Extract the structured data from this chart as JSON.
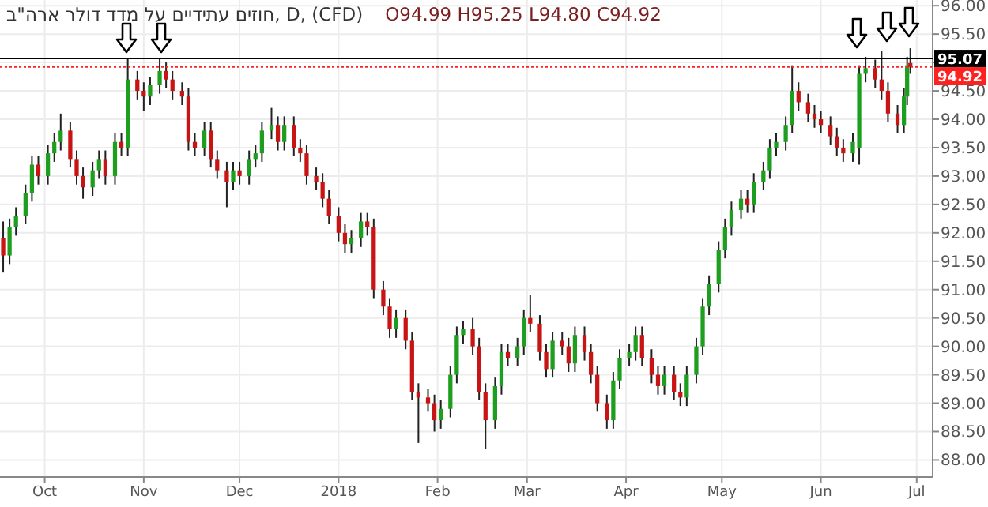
{
  "chart_data": {
    "type": "candlestick",
    "title": "חוזים עתידיים על מדד דולר ארה\"ב, D, (CFD)",
    "annotations": [
      "O94.99 H95.25 L94.80 C94.92"
    ],
    "colors": [
      "#c81414",
      "#1e9e1e",
      "#1e9e1e",
      "#1e9e1e",
      "#1e9e1e",
      "#c81414",
      "#1e9e1e",
      "#1e9e1e",
      "#1e9e1e",
      "#c81414",
      "#c81414",
      "#c81414",
      "#1e9e1e",
      "#1e9e1e",
      "#c81414",
      "#1e9e1e",
      "#c81414",
      "#1e9e1e",
      "#c81414",
      "#c81414",
      "#1e9e1e",
      "#1e9e1e",
      "#c81414",
      "#c81414",
      "#c81414",
      "#c81414",
      "#c81414",
      "#1e9e1e",
      "#c81414",
      "#c81414",
      "#c81414",
      "#1e9e1e",
      "#c81414",
      "#1e9e1e",
      "#1e9e1e",
      "#1e9e1e",
      "#1e9e1e",
      "#c81414",
      "#1e9e1e",
      "#c81414",
      "#c81414",
      "#c81414",
      "#c81414",
      "#c81414",
      "#c81414",
      "#c81414",
      "#c81414",
      "#1e9e1e",
      "#1e9e1e",
      "#c81414",
      "#c81414",
      "#c81414",
      "#c81414",
      "#1e9e1e",
      "#c81414",
      "#c81414",
      "#c81414",
      "#c81414",
      "#c81414",
      "#1e9e1e",
      "#1e9e1e",
      "#1e9e1e",
      "#1e9e1e",
      "#c81414",
      "#c81414",
      "#c81414",
      "#1e9e1e",
      "#1e9e1e",
      "#c81414",
      "#1e9e1e",
      "#1e9e1e",
      "#c81414",
      "#c81414",
      "#c81414",
      "#1e9e1e",
      "#c81414",
      "#c81414",
      "#1e9e1e",
      "#c81414",
      "#c81414",
      "#c81414",
      "#c81414",
      "#1e9e1e",
      "#1e9e1e",
      "#1e9e1e",
      "#1e9e1e",
      "#c81414",
      "#c81414",
      "#c81414",
      "#1e9e1e",
      "#c81414",
      "#c81414",
      "#1e9e1e",
      "#1e9e1e",
      "#1e9e1e",
      "#1e9e1e",
      "#1e9e1e",
      "#1e9e1e",
      "#1e9e1e",
      "#1e9e1e",
      "#c81414",
      "#1e9e1e",
      "#1e9e1e",
      "#1e9e1e",
      "#1e9e1e",
      "#1e9e1e",
      "#1e9e1e",
      "#c81414",
      "#c81414",
      "#c81414",
      "#c81414",
      "#c81414",
      "#c81414",
      "#c81414",
      "#1e9e1e",
      "#1e9e1e",
      "#1e9e1e",
      "#c81414",
      "#c81414",
      "#c81414",
      "#c81414",
      "#1e9e1e",
      "#1e9e1e",
      "#c81414"
    ],
    "grid": true,
    "xlim": [
      "2017-09-17",
      "2018-07-06"
    ],
    "xticks": [
      {
        "value": "2017-10-01",
        "label": "Oct"
      },
      {
        "value": "2017-11-01",
        "label": "Nov"
      },
      {
        "value": "2017-12-01",
        "label": "Dec"
      },
      {
        "value": "2018-01-01",
        "label": "2018"
      },
      {
        "value": "2018-02-01",
        "label": "Feb"
      },
      {
        "value": "2018-03-01",
        "label": "Mar"
      },
      {
        "value": "2018-04-01",
        "label": "Apr"
      },
      {
        "value": "2018-05-01",
        "label": "May"
      },
      {
        "value": "2018-06-01",
        "label": "Jun"
      },
      {
        "value": "2018-07-01",
        "label": "Jul"
      }
    ],
    "ylim": [
      87.7,
      96.1
    ],
    "yticks": [
      {
        "value": 88,
        "label": "88.00"
      },
      {
        "value": 88.5,
        "label": "88.50"
      },
      {
        "value": 89,
        "label": "89.00"
      },
      {
        "value": 89.5,
        "label": "89.50"
      },
      {
        "value": 90,
        "label": "90.00"
      },
      {
        "value": 90.5,
        "label": "90.50"
      },
      {
        "value": 91,
        "label": "91.00"
      },
      {
        "value": 91.5,
        "label": "91.50"
      },
      {
        "value": 92,
        "label": "92.00"
      },
      {
        "value": 92.5,
        "label": "92.50"
      },
      {
        "value": 93,
        "label": "93.00"
      },
      {
        "value": 93.5,
        "label": "93.50"
      },
      {
        "value": 94,
        "label": "94.00"
      },
      {
        "value": 94.5,
        "label": "94.50"
      },
      {
        "value": 95,
        "label": null
      },
      {
        "value": 95.5,
        "label": "95.50"
      },
      {
        "value": 96,
        "label": "96.00"
      }
    ],
    "ref_lines": [
      {
        "axis": "y",
        "value": 95.07,
        "label": "95.07",
        "color": "#000000",
        "line_style": "solid"
      },
      {
        "axis": "y",
        "value": 94.92,
        "label": "94.92",
        "color": "#ff2020",
        "line_style": "dotted"
      }
    ],
    "x": [
      "2017-09-18",
      "2017-09-20",
      "2017-09-22",
      "2017-09-25",
      "2017-09-27",
      "2017-09-29",
      "2017-10-02",
      "2017-10-04",
      "2017-10-06",
      "2017-10-09",
      "2017-10-11",
      "2017-10-13",
      "2017-10-16",
      "2017-10-18",
      "2017-10-20",
      "2017-10-23",
      "2017-10-25",
      "2017-10-27",
      "2017-10-30",
      "2017-11-01",
      "2017-11-03",
      "2017-11-06",
      "2017-11-08",
      "2017-11-10",
      "2017-11-13",
      "2017-11-15",
      "2017-11-17",
      "2017-11-20",
      "2017-11-22",
      "2017-11-24",
      "2017-11-27",
      "2017-11-29",
      "2017-12-01",
      "2017-12-04",
      "2017-12-06",
      "2017-12-08",
      "2017-12-11",
      "2017-12-13",
      "2017-12-15",
      "2017-12-18",
      "2017-12-20",
      "2017-12-22",
      "2017-12-25",
      "2017-12-27",
      "2017-12-29",
      "2018-01-01",
      "2018-01-03",
      "2018-01-05",
      "2018-01-08",
      "2018-01-10",
      "2018-01-12",
      "2018-01-15",
      "2018-01-17",
      "2018-01-19",
      "2018-01-22",
      "2018-01-24",
      "2018-01-26",
      "2018-01-29",
      "2018-01-31",
      "2018-02-02",
      "2018-02-05",
      "2018-02-07",
      "2018-02-09",
      "2018-02-12",
      "2018-02-14",
      "2018-02-16",
      "2018-02-19",
      "2018-02-21",
      "2018-02-23",
      "2018-02-26",
      "2018-02-28",
      "2018-03-02",
      "2018-03-05",
      "2018-03-07",
      "2018-03-09",
      "2018-03-12",
      "2018-03-14",
      "2018-03-16",
      "2018-03-19",
      "2018-03-21",
      "2018-03-23",
      "2018-03-26",
      "2018-03-28",
      "2018-03-30",
      "2018-04-02",
      "2018-04-04",
      "2018-04-06",
      "2018-04-09",
      "2018-04-11",
      "2018-04-13",
      "2018-04-16",
      "2018-04-18",
      "2018-04-20",
      "2018-04-23",
      "2018-04-25",
      "2018-04-27",
      "2018-04-30",
      "2018-05-02",
      "2018-05-04",
      "2018-05-07",
      "2018-05-09",
      "2018-05-11",
      "2018-05-14",
      "2018-05-16",
      "2018-05-18",
      "2018-05-21",
      "2018-05-23",
      "2018-05-25",
      "2018-05-28",
      "2018-05-30",
      "2018-06-01",
      "2018-06-04",
      "2018-06-06",
      "2018-06-08",
      "2018-06-11",
      "2018-06-13",
      "2018-06-15",
      "2018-06-18",
      "2018-06-20",
      "2018-06-22",
      "2018-06-25",
      "2018-06-27",
      "2018-06-28",
      "2018-06-29"
    ],
    "ohlc": [
      [
        91.9,
        92.2,
        91.3,
        91.6
      ],
      [
        91.6,
        92.25,
        91.45,
        92.1
      ],
      [
        92.1,
        92.45,
        91.95,
        92.3
      ],
      [
        92.3,
        92.85,
        92.15,
        92.7
      ],
      [
        92.7,
        93.35,
        92.55,
        93.2
      ],
      [
        93.2,
        93.35,
        92.85,
        93.0
      ],
      [
        93.0,
        93.55,
        92.85,
        93.4
      ],
      [
        93.4,
        93.75,
        93.25,
        93.6
      ],
      [
        93.6,
        94.1,
        93.45,
        93.8
      ],
      [
        93.8,
        93.95,
        93.15,
        93.3
      ],
      [
        93.3,
        93.45,
        92.85,
        93.0
      ],
      [
        93.0,
        93.15,
        92.6,
        92.8
      ],
      [
        92.8,
        93.25,
        92.65,
        93.1
      ],
      [
        93.1,
        93.45,
        92.95,
        93.3
      ],
      [
        93.3,
        93.45,
        92.85,
        93.0
      ],
      [
        93.0,
        93.75,
        92.85,
        93.6
      ],
      [
        93.6,
        93.75,
        93.35,
        93.5
      ],
      [
        93.5,
        95.07,
        93.35,
        94.7
      ],
      [
        94.7,
        94.85,
        94.35,
        94.5
      ],
      [
        94.5,
        94.65,
        94.15,
        94.4
      ],
      [
        94.4,
        94.75,
        94.25,
        94.6
      ],
      [
        94.6,
        95.07,
        94.45,
        94.85
      ],
      [
        94.85,
        95.0,
        94.55,
        94.7
      ],
      [
        94.7,
        94.85,
        94.35,
        94.5
      ],
      [
        94.5,
        94.65,
        94.25,
        94.4
      ],
      [
        94.4,
        94.55,
        93.45,
        93.6
      ],
      [
        93.6,
        93.75,
        93.35,
        93.5
      ],
      [
        93.5,
        93.95,
        93.35,
        93.8
      ],
      [
        93.8,
        93.95,
        93.15,
        93.3
      ],
      [
        93.3,
        93.45,
        92.95,
        93.1
      ],
      [
        93.1,
        93.25,
        92.45,
        92.9
      ],
      [
        92.9,
        93.25,
        92.75,
        93.1
      ],
      [
        93.1,
        93.25,
        92.85,
        93.0
      ],
      [
        93.0,
        93.45,
        92.85,
        93.3
      ],
      [
        93.3,
        93.55,
        93.15,
        93.4
      ],
      [
        93.4,
        93.95,
        93.25,
        93.8
      ],
      [
        93.8,
        94.2,
        93.65,
        93.9
      ],
      [
        93.9,
        94.05,
        93.45,
        93.6
      ],
      [
        93.6,
        94.05,
        93.45,
        93.9
      ],
      [
        93.9,
        94.05,
        93.35,
        93.5
      ],
      [
        93.5,
        93.65,
        93.25,
        93.4
      ],
      [
        93.4,
        93.55,
        92.85,
        93.0
      ],
      [
        93.0,
        93.15,
        92.75,
        92.9
      ],
      [
        92.9,
        93.05,
        92.45,
        92.6
      ],
      [
        92.6,
        92.75,
        92.15,
        92.3
      ],
      [
        92.3,
        92.45,
        91.85,
        92.0
      ],
      [
        92.0,
        92.15,
        91.65,
        91.8
      ],
      [
        91.8,
        92.05,
        91.65,
        91.9
      ],
      [
        91.9,
        92.35,
        91.75,
        92.2
      ],
      [
        92.2,
        92.35,
        91.95,
        92.1
      ],
      [
        92.1,
        92.25,
        90.85,
        91.0
      ],
      [
        91.0,
        91.15,
        90.55,
        90.7
      ],
      [
        90.7,
        90.85,
        90.15,
        90.3
      ],
      [
        90.3,
        90.65,
        90.15,
        90.5
      ],
      [
        90.5,
        90.65,
        89.95,
        90.1
      ],
      [
        90.1,
        90.25,
        89.05,
        89.2
      ],
      [
        89.2,
        89.35,
        88.3,
        89.1
      ],
      [
        89.1,
        89.25,
        88.85,
        89.0
      ],
      [
        89.0,
        89.15,
        88.5,
        88.7
      ],
      [
        88.7,
        89.05,
        88.55,
        88.9
      ],
      [
        88.9,
        89.65,
        88.75,
        89.5
      ],
      [
        89.5,
        90.35,
        89.35,
        90.2
      ],
      [
        90.2,
        90.45,
        90.05,
        90.3
      ],
      [
        90.3,
        90.5,
        89.85,
        90.0
      ],
      [
        90.0,
        90.15,
        89.05,
        89.2
      ],
      [
        89.2,
        89.35,
        88.2,
        88.7
      ],
      [
        88.7,
        89.45,
        88.55,
        89.3
      ],
      [
        89.3,
        90.05,
        89.15,
        89.9
      ],
      [
        89.9,
        90.05,
        89.65,
        89.8
      ],
      [
        89.8,
        90.15,
        89.65,
        90.0
      ],
      [
        90.0,
        90.65,
        89.85,
        90.5
      ],
      [
        90.5,
        90.9,
        90.25,
        90.4
      ],
      [
        90.4,
        90.55,
        89.75,
        89.9
      ],
      [
        89.9,
        90.05,
        89.45,
        89.6
      ],
      [
        89.6,
        90.25,
        89.45,
        90.1
      ],
      [
        90.1,
        90.25,
        89.85,
        90.0
      ],
      [
        90.0,
        90.15,
        89.55,
        89.7
      ],
      [
        89.7,
        90.35,
        89.55,
        90.2
      ],
      [
        90.2,
        90.35,
        89.75,
        89.9
      ],
      [
        89.9,
        90.05,
        89.35,
        89.5
      ],
      [
        89.5,
        89.65,
        88.85,
        89.0
      ],
      [
        89.0,
        89.15,
        88.55,
        88.7
      ],
      [
        88.7,
        89.55,
        88.55,
        89.4
      ],
      [
        89.4,
        89.95,
        89.25,
        89.8
      ],
      [
        89.8,
        90.05,
        89.65,
        89.9
      ],
      [
        89.9,
        90.35,
        89.75,
        90.2
      ],
      [
        90.2,
        90.35,
        89.65,
        89.8
      ],
      [
        89.8,
        89.95,
        89.35,
        89.5
      ],
      [
        89.5,
        89.65,
        89.15,
        89.3
      ],
      [
        89.3,
        89.65,
        89.15,
        89.5
      ],
      [
        89.5,
        89.65,
        89.05,
        89.2
      ],
      [
        89.2,
        89.35,
        88.95,
        89.1
      ],
      [
        89.1,
        89.65,
        88.95,
        89.5
      ],
      [
        89.5,
        90.15,
        89.35,
        90.0
      ],
      [
        90.0,
        90.85,
        89.85,
        90.7
      ],
      [
        90.7,
        91.25,
        90.55,
        91.1
      ],
      [
        91.1,
        91.85,
        90.95,
        91.7
      ],
      [
        91.7,
        92.25,
        91.55,
        92.1
      ],
      [
        92.1,
        92.55,
        91.95,
        92.4
      ],
      [
        92.4,
        92.75,
        92.25,
        92.6
      ],
      [
        92.6,
        92.75,
        92.35,
        92.5
      ],
      [
        92.5,
        93.05,
        92.35,
        92.9
      ],
      [
        92.9,
        93.25,
        92.75,
        93.1
      ],
      [
        93.1,
        93.65,
        92.95,
        93.5
      ],
      [
        93.5,
        93.75,
        93.35,
        93.6
      ],
      [
        93.6,
        94.05,
        93.45,
        93.9
      ],
      [
        93.9,
        94.95,
        93.75,
        94.5
      ],
      [
        94.5,
        94.65,
        94.15,
        94.3
      ],
      [
        94.3,
        94.45,
        93.95,
        94.1
      ],
      [
        94.1,
        94.25,
        93.85,
        94.0
      ],
      [
        94.0,
        94.15,
        93.75,
        93.9
      ],
      [
        93.9,
        94.05,
        93.55,
        93.7
      ],
      [
        93.7,
        93.85,
        93.35,
        93.5
      ],
      [
        93.5,
        93.65,
        93.25,
        93.4
      ],
      [
        93.4,
        93.75,
        93.25,
        93.6
      ],
      [
        93.5,
        94.95,
        93.2,
        94.8
      ],
      [
        94.8,
        95.1,
        94.65,
        94.9
      ],
      [
        94.9,
        95.05,
        94.55,
        94.7
      ],
      [
        94.7,
        95.2,
        94.35,
        94.5
      ],
      [
        94.5,
        94.65,
        93.95,
        94.1
      ],
      [
        94.1,
        94.25,
        93.75,
        93.9
      ],
      [
        93.9,
        94.55,
        93.75,
        94.4
      ],
      [
        94.4,
        95.1,
        94.25,
        94.95
      ],
      [
        94.99,
        95.25,
        94.8,
        94.92
      ]
    ]
  }
}
